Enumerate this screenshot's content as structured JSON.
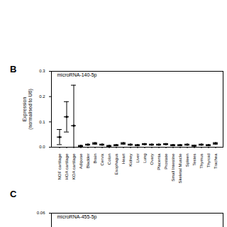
{
  "chart_data": [
    {
      "type": "scatter",
      "title": "microRNA-140-5p",
      "annotations": [
        "B"
      ],
      "y_label": "Expression (normalised to U6)",
      "categories": [
        "NOF cartilage",
        "HOA cartilage",
        "KOA cartilage",
        "Adipose",
        "Bladder",
        "Brain",
        "Cervix",
        "Colon",
        "Esophagus",
        "Heart",
        "Kidney",
        "Liver",
        "Lung",
        "Ovary",
        "Placenta",
        "Prostate",
        "Small Intestine",
        "Skeletal Muscle",
        "Spleen",
        "Testes",
        "Thymus",
        "Thyroid",
        "Trachea"
      ],
      "values": [
        0.04,
        0.12,
        0.085,
        0.005,
        0.01,
        0.015,
        0.01,
        0.005,
        0.008,
        0.015,
        0.01,
        0.008,
        0.012,
        0.01,
        0.01,
        0.012,
        0.008,
        0.008,
        0.01,
        0.006,
        0.01,
        0.008,
        0.015
      ],
      "error_bars": [
        [
          0.01,
          0.07
        ],
        [
          0.06,
          0.18
        ],
        [
          0.0,
          0.245
        ],
        [
          0.003,
          0.007
        ],
        [
          0.008,
          0.012
        ],
        [
          0.012,
          0.018
        ],
        [
          0.008,
          0.012
        ],
        [
          0.003,
          0.007
        ],
        [
          0.006,
          0.01
        ],
        [
          0.012,
          0.018
        ],
        [
          0.008,
          0.012
        ],
        [
          0.006,
          0.01
        ],
        [
          0.01,
          0.014
        ],
        [
          0.008,
          0.012
        ],
        [
          0.008,
          0.012
        ],
        [
          0.01,
          0.014
        ],
        [
          0.006,
          0.01
        ],
        [
          0.006,
          0.01
        ],
        [
          0.008,
          0.012
        ],
        [
          0.004,
          0.008
        ],
        [
          0.008,
          0.012
        ],
        [
          0.006,
          0.01
        ],
        [
          0.012,
          0.018
        ]
      ],
      "color": "#000000",
      "ylim": [
        0,
        0.3
      ],
      "yticks": [
        {
          "value": 0,
          "label": "0.0"
        },
        {
          "value": 0.1,
          "label": "0.1"
        },
        {
          "value": 0.2,
          "label": "0.2"
        },
        {
          "value": 0.3,
          "label": "0.3"
        }
      ],
      "grid": false
    },
    {
      "type": "bar",
      "title": "microRNA-455-5p",
      "annotations": [
        "C"
      ],
      "ylim": [
        0,
        0.06
      ],
      "yticks": [
        0.06
      ],
      "grid": false
    }
  ]
}
